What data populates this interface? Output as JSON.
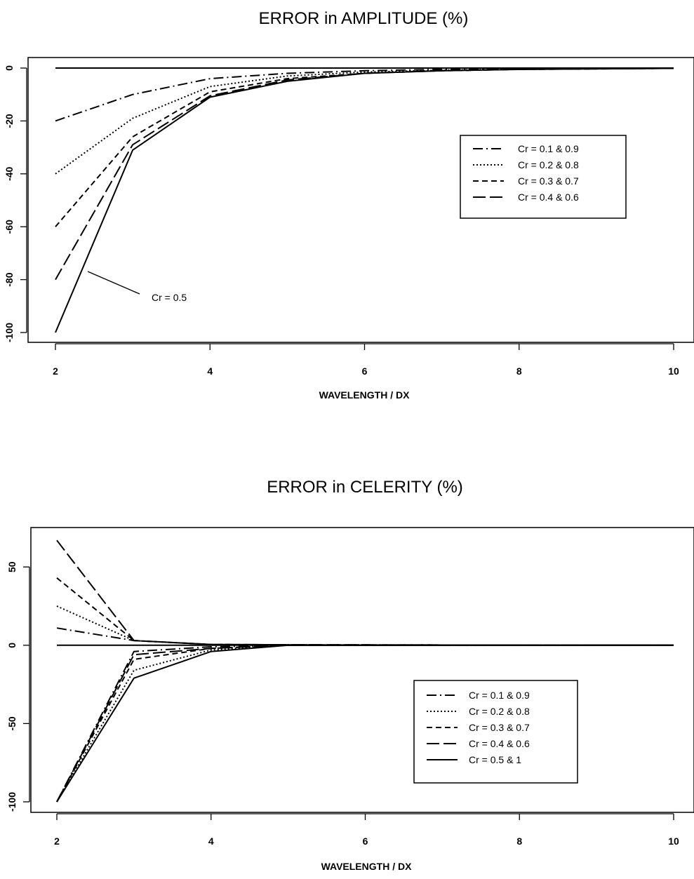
{
  "chart_data": [
    {
      "type": "line",
      "title": "ERROR in AMPLITUDE (%)",
      "xlabel": "WAVELENGTH / DX",
      "ylabel": "",
      "xlim": [
        2,
        10
      ],
      "ylim": [
        -100,
        0
      ],
      "xticks": [
        2,
        4,
        6,
        8,
        10
      ],
      "yticks": [
        0,
        -20,
        -40,
        -60,
        -80,
        -100
      ],
      "grid": false,
      "legend_position": "right",
      "series": [
        {
          "name": "Cr = 0.1 & 0.9",
          "dash": "dashdot",
          "x": [
            2,
            3,
            4,
            5,
            6,
            7,
            8,
            10
          ],
          "y": [
            -20,
            -10,
            -4,
            -2,
            -1,
            -0.5,
            -0.3,
            -0.1
          ]
        },
        {
          "name": "Cr = 0.2 & 0.8",
          "dash": "dotted",
          "x": [
            2,
            3,
            4,
            5,
            6,
            7,
            8,
            10
          ],
          "y": [
            -40,
            -19,
            -7,
            -3,
            -1.5,
            -0.8,
            -0.4,
            -0.1
          ]
        },
        {
          "name": "Cr = 0.3 & 0.7",
          "dash": "shortdash",
          "x": [
            2,
            3,
            4,
            5,
            6,
            7,
            8,
            10
          ],
          "y": [
            -60,
            -26,
            -9,
            -4,
            -2,
            -1,
            -0.5,
            -0.1
          ]
        },
        {
          "name": "Cr = 0.4 & 0.6",
          "dash": "longdash",
          "x": [
            2,
            3,
            4,
            5,
            6,
            7,
            8,
            10
          ],
          "y": [
            -80,
            -29,
            -10.5,
            -4.5,
            -2,
            -1,
            -0.5,
            -0.1
          ]
        },
        {
          "name": "",
          "dash": "solid",
          "x": [
            2,
            3,
            4,
            5,
            6,
            7,
            8,
            10
          ],
          "y": [
            -100,
            -31,
            -11,
            -5,
            -2,
            -1,
            -0.5,
            -0.1
          ]
        },
        {
          "name": "",
          "dash": "solid",
          "x": [
            2,
            10
          ],
          "y": [
            0,
            0
          ]
        }
      ],
      "annotations": [
        {
          "text": "Cr = 0.5",
          "x": 3.3,
          "y": -83,
          "arrow_to": [
            2.4,
            -75
          ]
        }
      ]
    },
    {
      "type": "line",
      "title": "ERROR in CELERITY (%)",
      "xlabel": "WAVELENGTH / DX",
      "ylabel": "",
      "xlim": [
        2,
        10
      ],
      "ylim": [
        -100,
        68
      ],
      "xticks": [
        2,
        4,
        6,
        8,
        10
      ],
      "yticks": [
        50,
        0,
        -50,
        -100
      ],
      "grid": false,
      "legend_position": "center-right",
      "series": [
        {
          "name": "Cr = 0.1 & 0.9",
          "dash": "dashdot",
          "x": [
            2,
            3,
            4,
            5,
            6,
            8,
            10
          ],
          "y": [
            11,
            3,
            0.5,
            0.3,
            0.2,
            0.1,
            0.1
          ]
        },
        {
          "name": "Cr = 0.1 & 0.9",
          "dash": "dashdot",
          "x": [
            2,
            3,
            4,
            5,
            6,
            8,
            10
          ],
          "y": [
            -100,
            -4,
            -1,
            0,
            0,
            0,
            0
          ]
        },
        {
          "name": "Cr = 0.2 & 0.8",
          "dash": "dotted",
          "x": [
            2,
            3,
            4,
            5,
            6,
            8,
            10
          ],
          "y": [
            25,
            3,
            0.5,
            0.3,
            0.2,
            0.1,
            0.1
          ]
        },
        {
          "name": "Cr = 0.2 & 0.8",
          "dash": "dotted",
          "x": [
            2,
            3,
            4,
            5,
            6,
            8,
            10
          ],
          "y": [
            -100,
            -16,
            -3,
            0,
            0,
            0,
            0
          ]
        },
        {
          "name": "Cr = 0.3 & 0.7",
          "dash": "shortdash",
          "x": [
            2,
            3,
            4,
            5,
            6,
            8,
            10
          ],
          "y": [
            43,
            3,
            0.5,
            0.3,
            0.2,
            0.1,
            0.1
          ]
        },
        {
          "name": "Cr = 0.3 & 0.7",
          "dash": "shortdash",
          "x": [
            2,
            3,
            4,
            5,
            6,
            8,
            10
          ],
          "y": [
            -100,
            -9,
            -2,
            0,
            0,
            0,
            0
          ]
        },
        {
          "name": "Cr = 0.4 & 0.6",
          "dash": "longdash",
          "x": [
            2,
            3,
            4,
            5,
            6,
            8,
            10
          ],
          "y": [
            67,
            3,
            0.5,
            0.3,
            0.2,
            0.1,
            0.1
          ]
        },
        {
          "name": "Cr = 0.4 & 0.6",
          "dash": "longdash",
          "x": [
            2,
            3,
            4,
            5,
            6,
            8,
            10
          ],
          "y": [
            -100,
            -6,
            -2,
            0,
            0,
            0,
            0
          ]
        },
        {
          "name": "Cr = 0.5 & 1",
          "dash": "solid",
          "x": [
            2,
            3,
            4,
            5,
            6,
            8,
            10
          ],
          "y": [
            0,
            0,
            0,
            0,
            0,
            0,
            0
          ]
        },
        {
          "name": "Cr = 0.5 & 1",
          "dash": "solid",
          "x": [
            2,
            3,
            4,
            5,
            6,
            8,
            10
          ],
          "y": [
            -100,
            -21,
            -4,
            0,
            0,
            0,
            0
          ]
        }
      ]
    }
  ]
}
